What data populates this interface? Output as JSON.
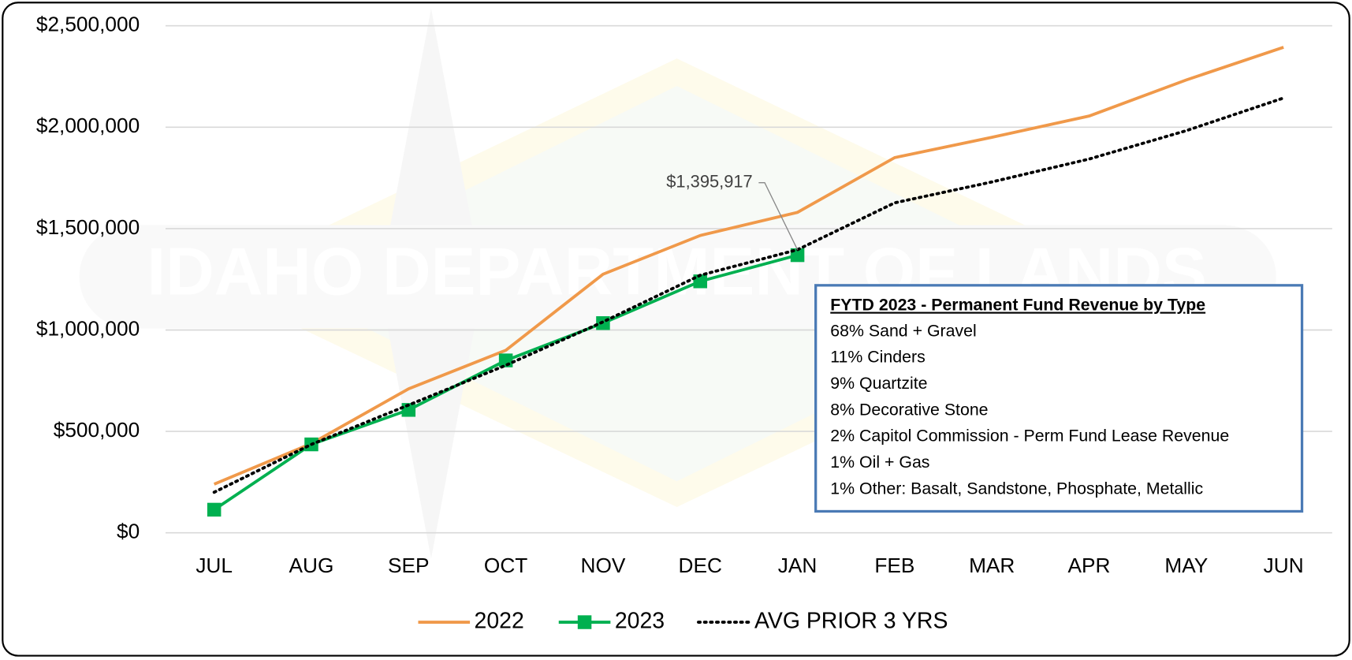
{
  "chart_data": {
    "type": "line",
    "watermark": "IDAHO DEPARTMENT OF LANDS",
    "categories": [
      "JUL",
      "AUG",
      "SEP",
      "OCT",
      "NOV",
      "DEC",
      "JAN",
      "FEB",
      "MAR",
      "APR",
      "MAY",
      "JUN"
    ],
    "series": [
      {
        "name": "2022",
        "color": "#f0994a",
        "style": "solid",
        "marker": false,
        "values": [
          240000,
          440000,
          710000,
          900000,
          1275000,
          1466000,
          1580000,
          1850000,
          1950000,
          2055000,
          2233000,
          2394000
        ]
      },
      {
        "name": "2023",
        "color": "#00b050",
        "style": "solid",
        "marker": true,
        "values": [
          114000,
          436000,
          606000,
          850000,
          1034000,
          1240000,
          1369000,
          null,
          null,
          null,
          null,
          null
        ]
      },
      {
        "name": "AVG PRIOR 3 YRS",
        "color": "#000000",
        "style": "dotted",
        "marker": false,
        "values": [
          200000,
          436000,
          630000,
          826000,
          1040000,
          1270000,
          1395917,
          1627000,
          1730000,
          1843000,
          1983000,
          2144000
        ],
        "value_labels": [
          null,
          null,
          null,
          null,
          null,
          null,
          "$1,395,917",
          null,
          null,
          null,
          null,
          null
        ]
      }
    ],
    "ylim": [
      0,
      2500000
    ],
    "yticks": [
      {
        "value": 0,
        "label": "$0"
      },
      {
        "value": 500000,
        "label": "$500,000"
      },
      {
        "value": 1000000,
        "label": "$1,000,000"
      },
      {
        "value": 1500000,
        "label": "$1,500,000"
      },
      {
        "value": 2000000,
        "label": "$2,000,000"
      },
      {
        "value": 2500000,
        "label": "$2,500,000"
      }
    ],
    "grid": true,
    "legend": "bottom",
    "text_box": {
      "title": "FYTD 2023 - Permanent Fund Revenue by Type",
      "lines": [
        "68% Sand + Gravel",
        "11% Cinders",
        "9% Quartzite",
        "8% Decorative Stone",
        "2% Capitol Commission - Perm Fund Lease Revenue",
        "1% Oil + Gas",
        "1% Other: Basalt, Sandstone, Phosphate, Metallic"
      ]
    }
  }
}
